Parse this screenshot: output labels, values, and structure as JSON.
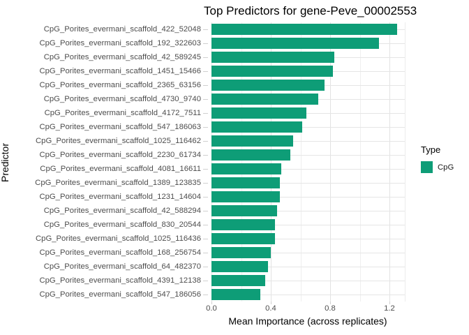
{
  "title": "Top Predictors for gene-Peve_00002553",
  "chart_data": {
    "type": "bar",
    "orientation": "horizontal",
    "title": "Top Predictors for gene-Peve_00002553",
    "xlabel": "Mean Importance (across replicates)",
    "ylabel": "Predictor",
    "xlim": [
      0,
      1.3
    ],
    "x_major_ticks": [
      0.0,
      0.4,
      0.8,
      1.2
    ],
    "x_tick_labels": [
      "0.0",
      "0.4",
      "0.8",
      "1.2"
    ],
    "x_minor_gridlines": [
      0.2,
      0.6,
      1.0
    ],
    "grid": true,
    "bar_color": "#0e9d77",
    "series_name": "CpG",
    "categories": [
      "CpG_Porites_evermani_scaffold_422_52048",
      "CpG_Porites_evermani_scaffold_192_322603",
      "CpG_Porites_evermani_scaffold_42_589245",
      "CpG_Porites_evermani_scaffold_1451_15466",
      "CpG_Porites_evermani_scaffold_2365_63156",
      "CpG_Porites_evermani_scaffold_4730_9740",
      "CpG_Porites_evermani_scaffold_4172_7511",
      "CpG_Porites_evermani_scaffold_547_186063",
      "CpG_Porites_evermani_scaffold_1025_116462",
      "CpG_Porites_evermani_scaffold_2230_61734",
      "CpG_Porites_evermani_scaffold_4081_16611",
      "CpG_Porites_evermani_scaffold_1389_123835",
      "CpG_Porites_evermani_scaffold_1231_14604",
      "CpG_Porites_evermani_scaffold_42_588294",
      "CpG_Porites_evermani_scaffold_830_20544",
      "CpG_Porites_evermani_scaffold_1025_116436",
      "CpG_Porites_evermani_scaffold_168_256754",
      "CpG_Porites_evermani_scaffold_64_482370",
      "CpG_Porites_evermani_scaffold_4391_12138",
      "CpG_Porites_evermani_scaffold_547_186056"
    ],
    "values": [
      1.25,
      1.13,
      0.83,
      0.82,
      0.76,
      0.72,
      0.64,
      0.61,
      0.55,
      0.53,
      0.47,
      0.46,
      0.46,
      0.44,
      0.43,
      0.43,
      0.4,
      0.38,
      0.36,
      0.33
    ],
    "legend": {
      "title": "Type",
      "position": "right",
      "entries": [
        {
          "label": "CpG",
          "color": "#0e9d77"
        }
      ]
    }
  },
  "colors": {
    "bar": "#0e9d77",
    "grid_major": "#e2e2e2",
    "grid_minor": "#efefef",
    "axis_text": "#4d4d4d",
    "tick": "#d0d0d0",
    "background": "#ffffff"
  }
}
